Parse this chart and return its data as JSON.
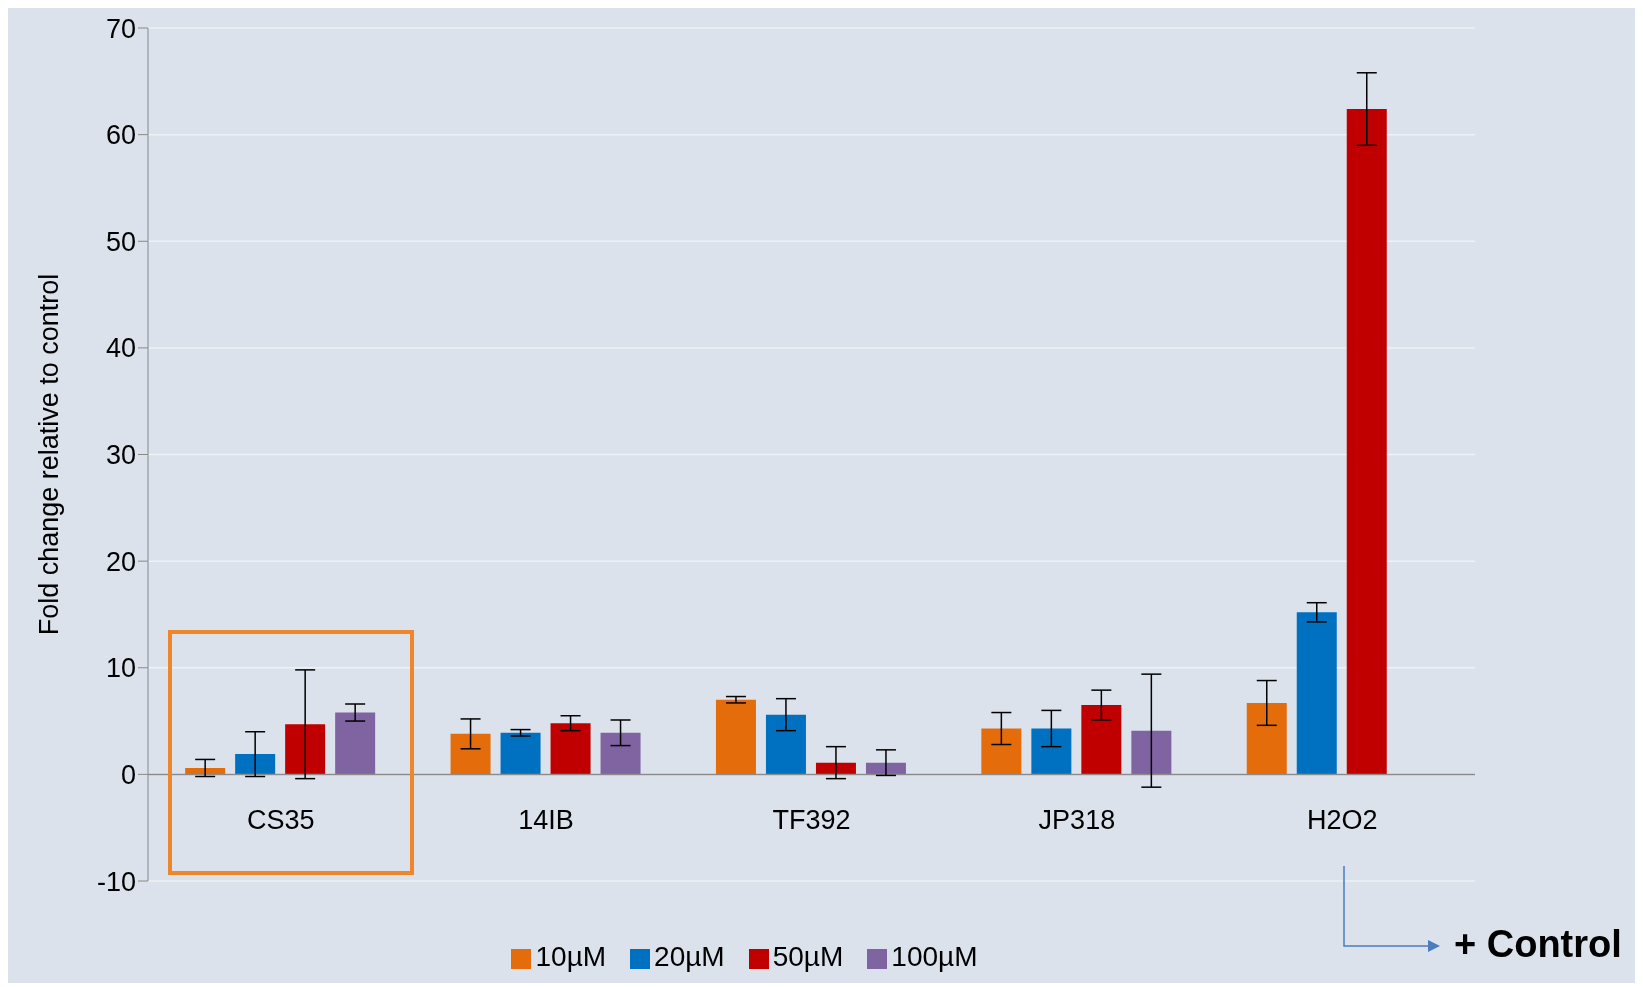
{
  "chart_data": {
    "type": "bar",
    "ylabel": "Fold change relative to control",
    "categories": [
      "CS35",
      "14IB",
      "TF392",
      "JP318",
      "H2O2"
    ],
    "series": [
      {
        "name": "10µM",
        "color": "#e46c0a",
        "values": [
          0.6,
          3.8,
          7.0,
          4.3,
          6.7
        ],
        "errors": [
          0.8,
          1.4,
          0.3,
          1.5,
          2.1
        ]
      },
      {
        "name": "20µM",
        "color": "#0070c0",
        "values": [
          1.9,
          3.9,
          5.6,
          4.3,
          15.2
        ],
        "errors": [
          2.1,
          0.3,
          1.5,
          1.7,
          0.9
        ]
      },
      {
        "name": "50µM",
        "color": "#c00000",
        "values": [
          4.7,
          4.8,
          1.1,
          6.5,
          62.4
        ],
        "errors": [
          5.1,
          0.7,
          1.5,
          1.4,
          3.4
        ]
      },
      {
        "name": "100µM",
        "color": "#8064a2",
        "values": [
          5.8,
          3.9,
          1.1,
          4.1,
          null
        ],
        "errors": [
          0.8,
          1.2,
          1.2,
          5.3,
          null
        ]
      }
    ],
    "ylim": [
      -10,
      70
    ],
    "yticks": [
      -10,
      0,
      10,
      20,
      30,
      40,
      50,
      60,
      70
    ],
    "grid": "y",
    "legend": "bottom",
    "annotations": [
      "+ Control"
    ]
  }
}
